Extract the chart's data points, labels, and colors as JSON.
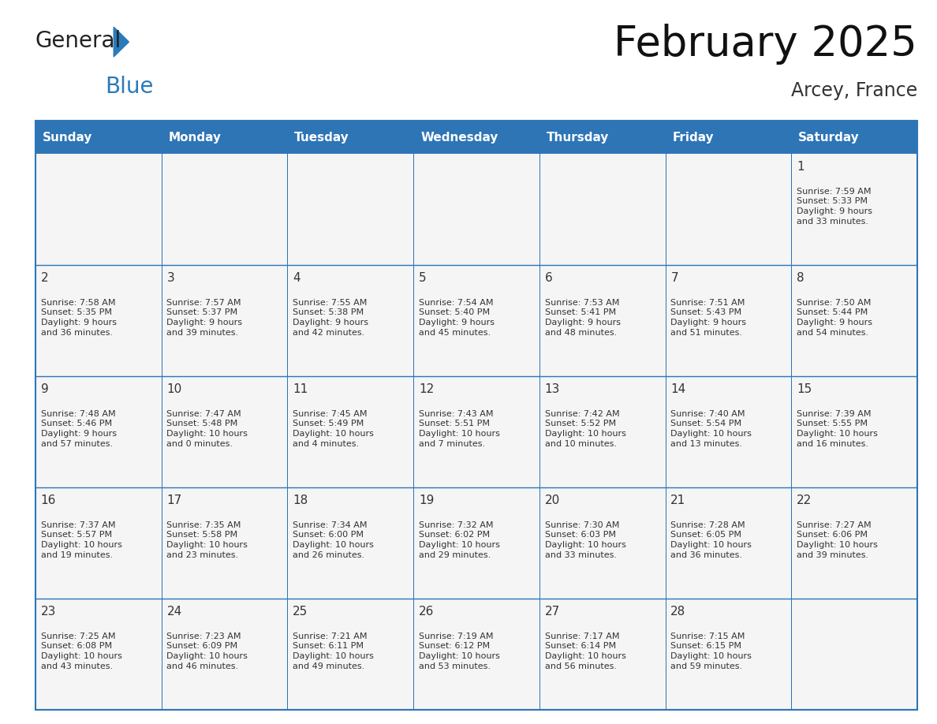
{
  "title": "February 2025",
  "subtitle": "Arcey, France",
  "header_bg": "#2E75B6",
  "header_text_color": "#FFFFFF",
  "cell_bg": "#F5F5F5",
  "border_color": "#2E75B6",
  "text_color": "#333333",
  "days_of_week": [
    "Sunday",
    "Monday",
    "Tuesday",
    "Wednesday",
    "Thursday",
    "Friday",
    "Saturday"
  ],
  "calendar_data": [
    [
      null,
      null,
      null,
      null,
      null,
      null,
      {
        "day": "1",
        "sunrise": "7:59 AM",
        "sunset": "5:33 PM",
        "daylight": "9 hours\nand 33 minutes."
      }
    ],
    [
      {
        "day": "2",
        "sunrise": "7:58 AM",
        "sunset": "5:35 PM",
        "daylight": "9 hours\nand 36 minutes."
      },
      {
        "day": "3",
        "sunrise": "7:57 AM",
        "sunset": "5:37 PM",
        "daylight": "9 hours\nand 39 minutes."
      },
      {
        "day": "4",
        "sunrise": "7:55 AM",
        "sunset": "5:38 PM",
        "daylight": "9 hours\nand 42 minutes."
      },
      {
        "day": "5",
        "sunrise": "7:54 AM",
        "sunset": "5:40 PM",
        "daylight": "9 hours\nand 45 minutes."
      },
      {
        "day": "6",
        "sunrise": "7:53 AM",
        "sunset": "5:41 PM",
        "daylight": "9 hours\nand 48 minutes."
      },
      {
        "day": "7",
        "sunrise": "7:51 AM",
        "sunset": "5:43 PM",
        "daylight": "9 hours\nand 51 minutes."
      },
      {
        "day": "8",
        "sunrise": "7:50 AM",
        "sunset": "5:44 PM",
        "daylight": "9 hours\nand 54 minutes."
      }
    ],
    [
      {
        "day": "9",
        "sunrise": "7:48 AM",
        "sunset": "5:46 PM",
        "daylight": "9 hours\nand 57 minutes."
      },
      {
        "day": "10",
        "sunrise": "7:47 AM",
        "sunset": "5:48 PM",
        "daylight": "10 hours\nand 0 minutes."
      },
      {
        "day": "11",
        "sunrise": "7:45 AM",
        "sunset": "5:49 PM",
        "daylight": "10 hours\nand 4 minutes."
      },
      {
        "day": "12",
        "sunrise": "7:43 AM",
        "sunset": "5:51 PM",
        "daylight": "10 hours\nand 7 minutes."
      },
      {
        "day": "13",
        "sunrise": "7:42 AM",
        "sunset": "5:52 PM",
        "daylight": "10 hours\nand 10 minutes."
      },
      {
        "day": "14",
        "sunrise": "7:40 AM",
        "sunset": "5:54 PM",
        "daylight": "10 hours\nand 13 minutes."
      },
      {
        "day": "15",
        "sunrise": "7:39 AM",
        "sunset": "5:55 PM",
        "daylight": "10 hours\nand 16 minutes."
      }
    ],
    [
      {
        "day": "16",
        "sunrise": "7:37 AM",
        "sunset": "5:57 PM",
        "daylight": "10 hours\nand 19 minutes."
      },
      {
        "day": "17",
        "sunrise": "7:35 AM",
        "sunset": "5:58 PM",
        "daylight": "10 hours\nand 23 minutes."
      },
      {
        "day": "18",
        "sunrise": "7:34 AM",
        "sunset": "6:00 PM",
        "daylight": "10 hours\nand 26 minutes."
      },
      {
        "day": "19",
        "sunrise": "7:32 AM",
        "sunset": "6:02 PM",
        "daylight": "10 hours\nand 29 minutes."
      },
      {
        "day": "20",
        "sunrise": "7:30 AM",
        "sunset": "6:03 PM",
        "daylight": "10 hours\nand 33 minutes."
      },
      {
        "day": "21",
        "sunrise": "7:28 AM",
        "sunset": "6:05 PM",
        "daylight": "10 hours\nand 36 minutes."
      },
      {
        "day": "22",
        "sunrise": "7:27 AM",
        "sunset": "6:06 PM",
        "daylight": "10 hours\nand 39 minutes."
      }
    ],
    [
      {
        "day": "23",
        "sunrise": "7:25 AM",
        "sunset": "6:08 PM",
        "daylight": "10 hours\nand 43 minutes."
      },
      {
        "day": "24",
        "sunrise": "7:23 AM",
        "sunset": "6:09 PM",
        "daylight": "10 hours\nand 46 minutes."
      },
      {
        "day": "25",
        "sunrise": "7:21 AM",
        "sunset": "6:11 PM",
        "daylight": "10 hours\nand 49 minutes."
      },
      {
        "day": "26",
        "sunrise": "7:19 AM",
        "sunset": "6:12 PM",
        "daylight": "10 hours\nand 53 minutes."
      },
      {
        "day": "27",
        "sunrise": "7:17 AM",
        "sunset": "6:14 PM",
        "daylight": "10 hours\nand 56 minutes."
      },
      {
        "day": "28",
        "sunrise": "7:15 AM",
        "sunset": "6:15 PM",
        "daylight": "10 hours\nand 59 minutes."
      },
      null
    ]
  ],
  "logo_general_color": "#222222",
  "logo_blue_color": "#2A7ABA",
  "logo_triangle_color": "#2A7ABA",
  "title_fontsize": 38,
  "subtitle_fontsize": 17,
  "day_num_fontsize": 11,
  "cell_text_fontsize": 8,
  "header_fontsize": 11
}
